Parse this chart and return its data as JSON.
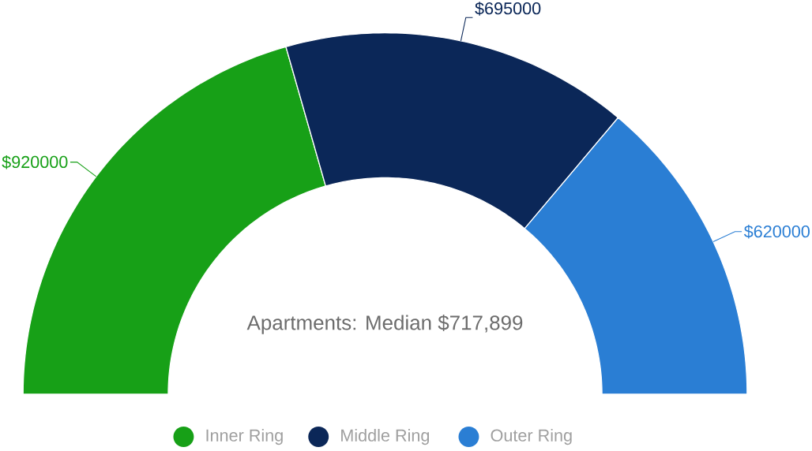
{
  "chart_data": {
    "type": "donut",
    "categories": [
      "Inner Ring",
      "Middle Ring",
      "Outer Ring"
    ],
    "values": [
      920000,
      695000,
      620000
    ],
    "colors": [
      "#17a017",
      "#0b2758",
      "#2a7ed4"
    ],
    "value_labels": [
      "$920000",
      "$695000",
      "$620000"
    ],
    "annotations": [
      "Apartments: Median $717,899"
    ],
    "legend": "bottom"
  }
}
